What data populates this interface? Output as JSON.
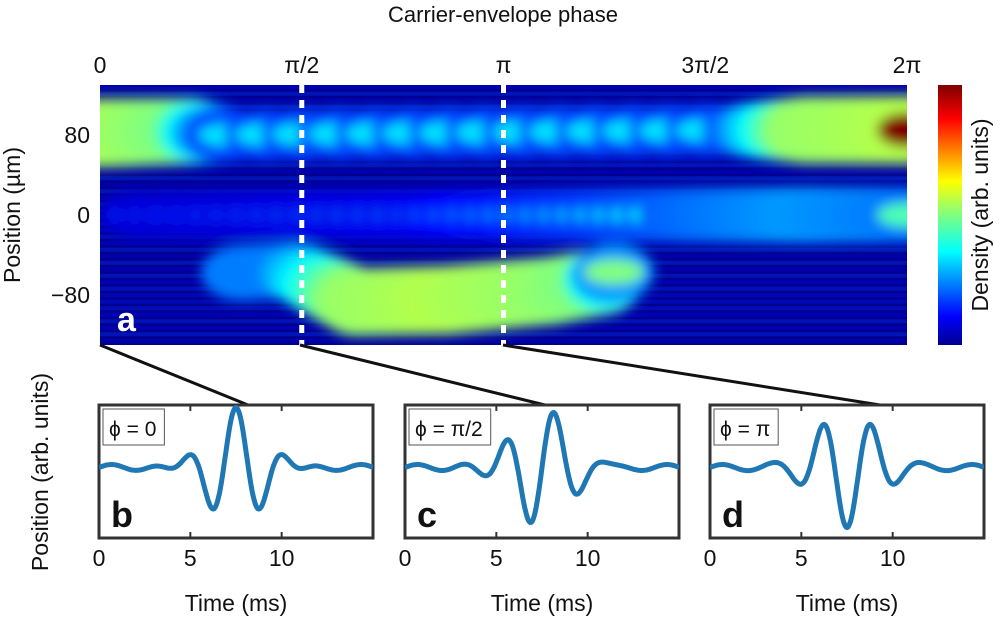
{
  "chart_data": [
    {
      "type": "heatmap",
      "panel_label": "a",
      "title": "Carrier-envelope phase",
      "ylabel": "Position (µm)",
      "x_ticks": [
        "0",
        "π/2",
        "π",
        "3π/2",
        "2π"
      ],
      "x_tick_values": [
        0,
        1.5708,
        3.1416,
        4.7124,
        6.2832
      ],
      "xlim": [
        0,
        6.2832
      ],
      "y_ticks": [
        "80",
        "0",
        "−80"
      ],
      "y_tick_values": [
        80,
        0,
        -80
      ],
      "ylim": [
        -130,
        130
      ],
      "colorbar_label": "Density (arb. units)",
      "colormap": "jet",
      "marked_phases": [
        1.5708,
        3.1416
      ],
      "density_ridges": [
        {
          "name": "upper",
          "points": [
            [
              0,
              82,
              1.0
            ],
            [
              0.7,
              84,
              0.9
            ],
            [
              1.0,
              80,
              0.35
            ],
            [
              5.0,
              85,
              0.35
            ],
            [
              5.5,
              85,
              0.95
            ],
            [
              6.2832,
              85,
              1.0
            ]
          ]
        },
        {
          "name": "lower",
          "points": [
            [
              1.1,
              -58,
              0.45
            ],
            [
              1.5,
              -55,
              0.45
            ],
            [
              2.0,
              -87,
              0.95
            ],
            [
              2.7,
              -85,
              1.0
            ],
            [
              3.5,
              -76,
              0.95
            ],
            [
              3.9,
              -67,
              0.9
            ],
            [
              4.0,
              -57,
              0.5
            ]
          ]
        },
        {
          "name": "middle",
          "points": [
            [
              0.3,
              0,
              0.15
            ],
            [
              2.5,
              0,
              0.2
            ],
            [
              4.5,
              0,
              0.4
            ],
            [
              5.5,
              0,
              0.5
            ],
            [
              6.2832,
              0,
              0.45
            ]
          ]
        }
      ]
    },
    {
      "type": "line",
      "panel_label": "b",
      "legend": "ϕ = 0",
      "phase": 0,
      "xlabel": "Time (ms)",
      "ylabel": "Position (arb. units)",
      "x_ticks": [
        "0",
        "5",
        "10"
      ],
      "xlim": [
        0,
        15
      ],
      "center_ms": 7.5,
      "period_ms": 2.7,
      "width_ms": 2.2
    },
    {
      "type": "line",
      "panel_label": "c",
      "legend": "ϕ = π/2",
      "phase": 1.5708,
      "xlabel": "Time (ms)",
      "ylabel": "",
      "x_ticks": [
        "0",
        "5",
        "10"
      ],
      "xlim": [
        0,
        15
      ],
      "center_ms": 7.5,
      "period_ms": 2.7,
      "width_ms": 2.2
    },
    {
      "type": "line",
      "panel_label": "d",
      "legend": "ϕ = π",
      "phase": 3.1416,
      "xlabel": "Time (ms)",
      "ylabel": "",
      "x_ticks": [
        "0",
        "5",
        "10"
      ],
      "xlim": [
        0,
        15
      ],
      "center_ms": 7.5,
      "period_ms": 2.7,
      "width_ms": 2.2
    }
  ],
  "colors": {
    "line": "#1f77b4",
    "frame": "#333333",
    "marker": "#ffffff"
  }
}
